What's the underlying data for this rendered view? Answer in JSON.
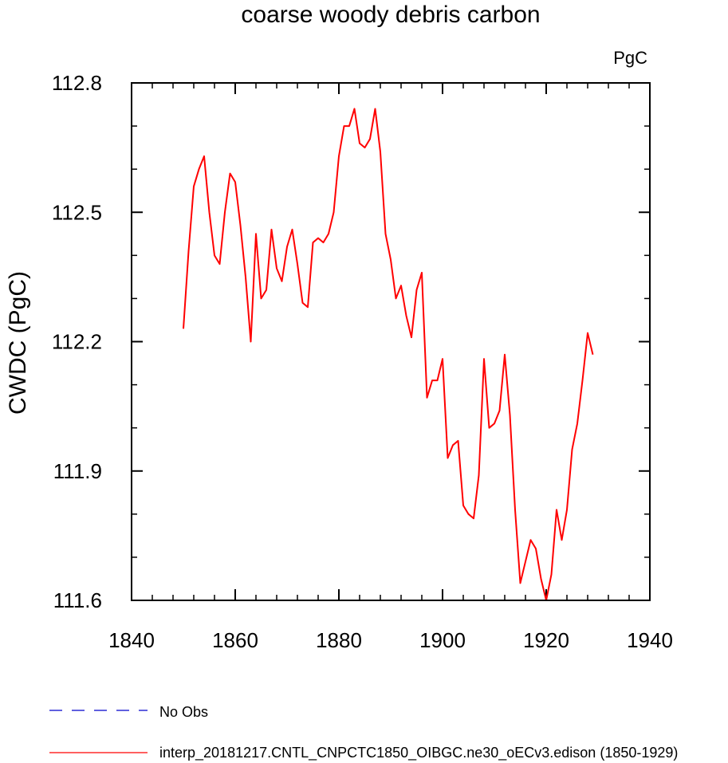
{
  "chart_data": {
    "type": "line",
    "title": "coarse woody debris carbon",
    "units": "PgC",
    "ylabel": "CWDC  (PgC)",
    "xlabel": "",
    "xlim": [
      1840,
      1940
    ],
    "ylim": [
      111.6,
      112.8
    ],
    "xticks": [
      "1840",
      "1860",
      "1880",
      "1900",
      "1920",
      "1940"
    ],
    "yticks": [
      "111.6",
      "111.9",
      "112.2",
      "112.5",
      "112.8"
    ],
    "grid": false,
    "legend_position": "bottom",
    "series": [
      {
        "name": "No Obs",
        "color": "#0000cc",
        "style": "dashed",
        "x": [],
        "y": []
      },
      {
        "name": "interp_20181217.CNTL_CNPCTC1850_OIBGC.ne30_oECv3.edison (1850-1929)",
        "color": "#ff0000",
        "style": "solid",
        "x": [
          1850,
          1851,
          1852,
          1853,
          1854,
          1855,
          1856,
          1857,
          1858,
          1859,
          1860,
          1861,
          1862,
          1863,
          1864,
          1865,
          1866,
          1867,
          1868,
          1869,
          1870,
          1871,
          1872,
          1873,
          1874,
          1875,
          1876,
          1877,
          1878,
          1879,
          1880,
          1881,
          1882,
          1883,
          1884,
          1885,
          1886,
          1887,
          1888,
          1889,
          1890,
          1891,
          1892,
          1893,
          1894,
          1895,
          1896,
          1897,
          1898,
          1899,
          1900,
          1901,
          1902,
          1903,
          1904,
          1905,
          1906,
          1907,
          1908,
          1909,
          1910,
          1911,
          1912,
          1913,
          1914,
          1915,
          1916,
          1917,
          1918,
          1919,
          1920,
          1921,
          1922,
          1923,
          1924,
          1925,
          1926,
          1927,
          1928,
          1929
        ],
        "y": [
          112.23,
          112.41,
          112.56,
          112.6,
          112.63,
          112.5,
          112.4,
          112.38,
          112.5,
          112.59,
          112.57,
          112.47,
          112.35,
          112.2,
          112.45,
          112.3,
          112.32,
          112.46,
          112.37,
          112.34,
          112.42,
          112.46,
          112.38,
          112.29,
          112.28,
          112.43,
          112.44,
          112.43,
          112.45,
          112.5,
          112.63,
          112.7,
          112.7,
          112.74,
          112.66,
          112.65,
          112.67,
          112.74,
          112.64,
          112.45,
          112.39,
          112.3,
          112.33,
          112.26,
          112.21,
          112.32,
          112.36,
          112.07,
          112.11,
          112.11,
          112.16,
          111.93,
          111.96,
          111.97,
          111.82,
          111.8,
          111.79,
          111.89,
          112.16,
          112.0,
          112.01,
          112.04,
          112.17,
          112.03,
          111.81,
          111.64,
          111.69,
          111.74,
          111.72,
          111.65,
          111.6,
          111.66,
          111.81,
          111.74,
          111.81,
          111.95,
          112.01,
          112.11,
          112.22,
          112.17
        ]
      }
    ]
  }
}
